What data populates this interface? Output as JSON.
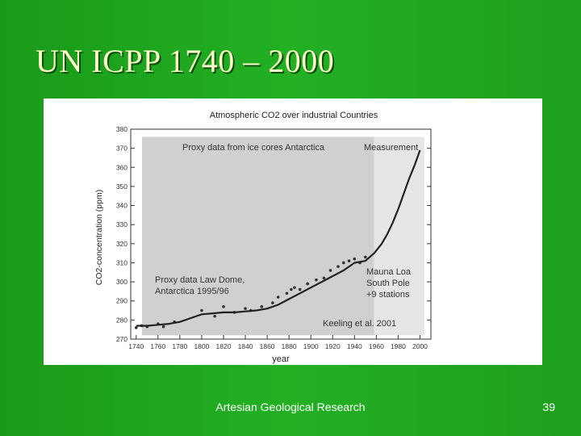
{
  "slide": {
    "title": "UN ICPP 1740 – 2000",
    "footer": "Artesian Geological Research",
    "page_number": "39"
  },
  "colors": {
    "background": "#1fa51f",
    "title": "#ffffcc",
    "proxy_shade": "#d0d0d0",
    "measurement_shade": "#e6e6e6",
    "curve": "#222222"
  },
  "chart_data": {
    "type": "line",
    "title": "Atmospheric CO2 over industrial Countries",
    "xlabel": "year",
    "ylabel": "CO2-concentration (ppm)",
    "xlim": [
      1735,
      2010
    ],
    "ylim": [
      270,
      380
    ],
    "x_ticks": [
      "1740",
      "1760",
      "1780",
      "1800",
      "1820",
      "1840",
      "1860",
      "1880",
      "1900",
      "1920",
      "1940",
      "1960",
      "1980",
      "2000"
    ],
    "y_ticks": [
      "270",
      "280",
      "290",
      "300",
      "310",
      "320",
      "330",
      "340",
      "350",
      "360",
      "370",
      "380"
    ],
    "regions": [
      {
        "label": "Proxy data from ice cores Antarctica",
        "x_range": [
          1735,
          1958
        ]
      },
      {
        "label": "Measurement",
        "x_range": [
          1958,
          2010
        ]
      }
    ],
    "annotations": [
      {
        "text": "Proxy data Law Dome,",
        "line": 1
      },
      {
        "text": "Antarctica 1995/96",
        "line": 2
      },
      {
        "text": "Mauna Loa",
        "line": 1
      },
      {
        "text": "South Pole",
        "line": 2
      },
      {
        "text": "+9 stations",
        "line": 3
      },
      {
        "text": "Keeling et al. 2001",
        "line": 1
      }
    ],
    "series": [
      {
        "x": [
          1740,
          1750,
          1760,
          1770,
          1780,
          1790,
          1800,
          1810,
          1820,
          1830,
          1840,
          1850,
          1860,
          1870,
          1880,
          1890,
          1900,
          1910,
          1920,
          1930,
          1940,
          1950,
          1958,
          1965,
          1970,
          1975,
          1980,
          1985,
          1990,
          1995,
          2000
        ],
        "values": [
          277,
          277,
          277.5,
          278,
          279,
          281,
          283,
          283.5,
          284,
          284,
          284.5,
          285,
          286,
          288,
          291,
          294,
          297,
          300,
          303,
          306,
          310,
          311,
          315,
          320,
          325,
          331,
          338,
          346,
          354,
          361,
          369
        ]
      }
    ],
    "proxy_points": {
      "x": [
        1740,
        1745,
        1750,
        1760,
        1765,
        1775,
        1800,
        1812,
        1820,
        1830,
        1840,
        1845,
        1855,
        1865,
        1870,
        1878,
        1882,
        1885,
        1890,
        1897,
        1905,
        1912,
        1918,
        1925,
        1930,
        1935,
        1940,
        1945,
        1950
      ],
      "values": [
        276,
        277,
        276.5,
        278,
        276.5,
        279,
        285,
        282,
        287,
        284,
        286,
        285,
        287,
        289,
        292,
        294,
        296,
        297,
        296,
        299,
        301,
        302,
        306,
        308,
        310,
        311,
        312,
        310,
        313
      ]
    }
  }
}
